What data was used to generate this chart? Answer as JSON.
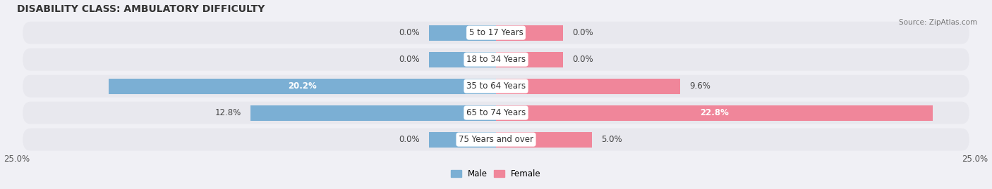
{
  "title": "DISABILITY CLASS: AMBULATORY DIFFICULTY",
  "source": "Source: ZipAtlas.com",
  "categories": [
    "5 to 17 Years",
    "18 to 34 Years",
    "35 to 64 Years",
    "65 to 74 Years",
    "75 Years and over"
  ],
  "male_values": [
    0.0,
    0.0,
    20.2,
    12.8,
    0.0
  ],
  "female_values": [
    0.0,
    0.0,
    9.6,
    22.8,
    5.0
  ],
  "male_color": "#7bafd4",
  "female_color": "#f0869a",
  "male_label": "Male",
  "female_label": "Female",
  "xlim": 25.0,
  "fig_bg": "#f0f0f5",
  "row_bg_color": "#e8e8ee",
  "title_fontsize": 10,
  "label_fontsize": 8.5,
  "tick_fontsize": 8.5,
  "bar_height": 0.58,
  "min_stub": 3.5
}
